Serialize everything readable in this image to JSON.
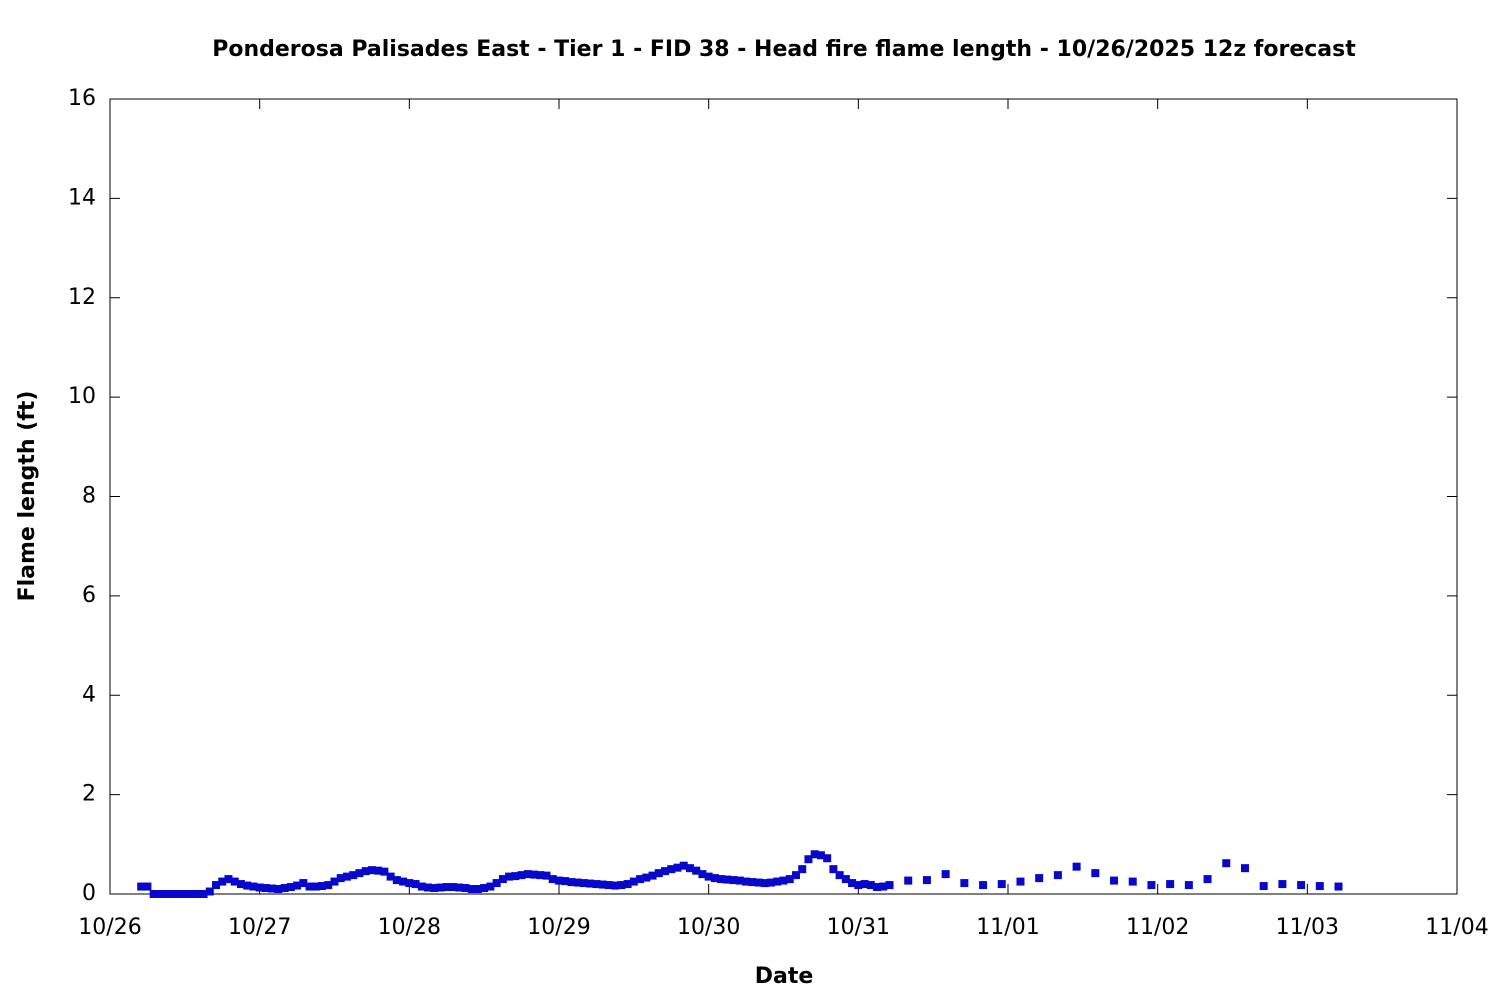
{
  "chart_data": {
    "type": "scatter",
    "title": "Ponderosa Palisades East - Tier 1 - FID 38 - Head fire flame length - 10/26/2025 12z forecast",
    "x_label": "Date",
    "y_label": "Flame length (ft)",
    "color": "#0808cc",
    "xlim": [
      0,
      216
    ],
    "xticks": [
      {
        "value": 0,
        "label": "10/26"
      },
      {
        "value": 24,
        "label": "10/27"
      },
      {
        "value": 48,
        "label": "10/28"
      },
      {
        "value": 72,
        "label": "10/29"
      },
      {
        "value": 96,
        "label": "10/30"
      },
      {
        "value": 120,
        "label": "10/31"
      },
      {
        "value": 144,
        "label": "11/01"
      },
      {
        "value": 168,
        "label": "11/02"
      },
      {
        "value": 192,
        "label": "11/03"
      },
      {
        "value": 216,
        "label": "11/04"
      }
    ],
    "ylim": [
      0,
      16
    ],
    "yticks": [
      0,
      2,
      4,
      6,
      8,
      10,
      12,
      14,
      16
    ],
    "x": [
      5,
      6,
      7,
      8,
      9,
      10,
      11,
      12,
      13,
      14,
      15,
      16,
      17,
      18,
      19,
      20,
      21,
      22,
      23,
      24,
      25,
      26,
      27,
      28,
      29,
      30,
      31,
      32,
      33,
      34,
      35,
      36,
      37,
      38,
      39,
      40,
      41,
      42,
      43,
      44,
      45,
      46,
      47,
      48,
      49,
      50,
      51,
      52,
      53,
      54,
      55,
      56,
      57,
      58,
      59,
      60,
      61,
      62,
      63,
      64,
      65,
      66,
      67,
      68,
      69,
      70,
      71,
      72,
      73,
      74,
      75,
      76,
      77,
      78,
      79,
      80,
      81,
      82,
      83,
      84,
      85,
      86,
      87,
      88,
      89,
      90,
      91,
      92,
      93,
      94,
      95,
      96,
      97,
      98,
      99,
      100,
      101,
      102,
      103,
      104,
      105,
      106,
      107,
      108,
      109,
      110,
      111,
      112,
      113,
      114,
      115,
      116,
      117,
      118,
      119,
      120,
      121,
      122,
      123,
      124,
      125,
      128,
      131,
      134,
      137,
      140,
      143,
      146,
      149,
      152,
      155,
      158,
      161,
      164,
      167,
      170,
      173,
      176,
      179,
      182,
      185,
      188,
      191,
      194,
      197
    ],
    "values": [
      0.15,
      0.15,
      0,
      0,
      0,
      0,
      0,
      0,
      0,
      0,
      0,
      0.05,
      0.18,
      0.25,
      0.3,
      0.25,
      0.2,
      0.17,
      0.15,
      0.13,
      0.12,
      0.11,
      0.1,
      0.12,
      0.14,
      0.17,
      0.22,
      0.15,
      0.15,
      0.16,
      0.18,
      0.25,
      0.32,
      0.35,
      0.38,
      0.42,
      0.46,
      0.48,
      0.47,
      0.45,
      0.35,
      0.28,
      0.25,
      0.22,
      0.2,
      0.15,
      0.13,
      0.12,
      0.13,
      0.14,
      0.14,
      0.13,
      0.12,
      0.1,
      0.1,
      0.12,
      0.15,
      0.22,
      0.3,
      0.35,
      0.36,
      0.38,
      0.4,
      0.39,
      0.38,
      0.37,
      0.3,
      0.27,
      0.26,
      0.24,
      0.23,
      0.22,
      0.21,
      0.2,
      0.19,
      0.18,
      0.17,
      0.18,
      0.2,
      0.25,
      0.3,
      0.33,
      0.37,
      0.42,
      0.46,
      0.5,
      0.53,
      0.57,
      0.52,
      0.47,
      0.4,
      0.35,
      0.32,
      0.3,
      0.29,
      0.28,
      0.27,
      0.25,
      0.24,
      0.23,
      0.22,
      0.23,
      0.25,
      0.27,
      0.3,
      0.38,
      0.5,
      0.7,
      0.8,
      0.78,
      0.72,
      0.5,
      0.38,
      0.3,
      0.22,
      0.18,
      0.2,
      0.18,
      0.14,
      0.15,
      0.18,
      0.27,
      0.28,
      0.4,
      0.22,
      0.18,
      0.2,
      0.25,
      0.32,
      0.38,
      0.55,
      0.42,
      0.27,
      0.25,
      0.18,
      0.2,
      0.18,
      0.3,
      0.62,
      0.52,
      0.16,
      0.2,
      0.18,
      0.16,
      0.15
    ]
  }
}
